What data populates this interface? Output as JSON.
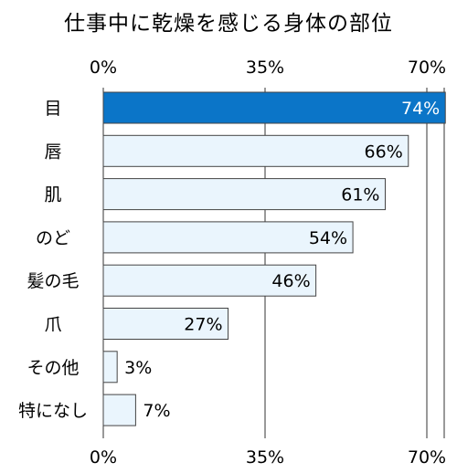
{
  "chart_data": {
    "type": "bar",
    "orientation": "horizontal",
    "title": "仕事中に乾燥を感じる身体の部位",
    "categories": [
      "目",
      "唇",
      "肌",
      "のど",
      "髪の毛",
      "爪",
      "その他",
      "特になし"
    ],
    "values": [
      74,
      66,
      61,
      54,
      46,
      27,
      3,
      7
    ],
    "value_labels": [
      "74%",
      "66%",
      "61%",
      "54%",
      "46%",
      "27%",
      "3%",
      "7%"
    ],
    "x_ticks": [
      0,
      35,
      70
    ],
    "x_tick_labels": [
      "0%",
      "35%",
      "70%"
    ],
    "xlim": [
      0,
      72
    ],
    "grid": "vertical",
    "tick_labels_top_and_bottom": true,
    "colors": {
      "highlight_fill": "#0B75C8",
      "normal_fill": "#EAF5FD",
      "bar_stroke": "#444444",
      "highlight_label": "#ffffff",
      "label": "#000000",
      "grid": "#333333"
    }
  }
}
